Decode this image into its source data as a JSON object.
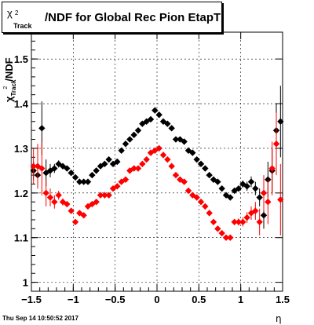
{
  "title": {
    "symbol": "χ",
    "sup": "2",
    "sub": "Track",
    "text": "/NDF for Global Rec Pion EtapT"
  },
  "ylabel": {
    "symbol": "χ",
    "sup": "2",
    "sub": "Track",
    "text": "/NDF"
  },
  "xlabel": "η",
  "footer": "Thu Sep 14 10:50:52 2017",
  "colors": {
    "black_series": "#000000",
    "red_series": "#ff0000",
    "grid": "#000000"
  },
  "chart_data": {
    "type": "scatter",
    "xlim": [
      -1.5,
      1.5
    ],
    "ylim": [
      0.98,
      1.56
    ],
    "grid": true,
    "xticks": [
      {
        "v": -1.5,
        "label": "−1.5"
      },
      {
        "v": -1.0,
        "label": "−1"
      },
      {
        "v": -0.5,
        "label": "−0.5"
      },
      {
        "v": 0.0,
        "label": "0"
      },
      {
        "v": 0.5,
        "label": "0.5"
      },
      {
        "v": 1.0,
        "label": "1"
      },
      {
        "v": 1.5,
        "label": "1.5"
      }
    ],
    "yticks": [
      {
        "v": 1.0,
        "label": "1"
      },
      {
        "v": 1.1,
        "label": "1.1"
      },
      {
        "v": 1.2,
        "label": "1.2"
      },
      {
        "v": 1.3,
        "label": "1.3"
      },
      {
        "v": 1.4,
        "label": "1.4"
      },
      {
        "v": 1.5,
        "label": "1.5"
      }
    ],
    "series": [
      {
        "color": "#000000",
        "points": [
          [
            -1.475,
            1.25,
            0.02
          ],
          [
            -1.425,
            1.24,
            0.03
          ],
          [
            -1.375,
            1.345,
            0.06
          ],
          [
            -1.325,
            1.245,
            0.03
          ],
          [
            -1.275,
            1.25,
            0.015
          ],
          [
            -1.225,
            1.255,
            0.01
          ],
          [
            -1.175,
            1.265,
            0.008
          ],
          [
            -1.125,
            1.26,
            0.006
          ],
          [
            -1.075,
            1.255,
            0.005
          ],
          [
            -1.025,
            1.245,
            0.005
          ],
          [
            -0.975,
            1.235,
            0.005
          ],
          [
            -0.925,
            1.225,
            0.005
          ],
          [
            -0.875,
            1.225,
            0.005
          ],
          [
            -0.825,
            1.225,
            0.005
          ],
          [
            -0.775,
            1.24,
            0.005
          ],
          [
            -0.725,
            1.25,
            0.005
          ],
          [
            -0.675,
            1.26,
            0.005
          ],
          [
            -0.625,
            1.265,
            0.005
          ],
          [
            -0.575,
            1.275,
            0.005
          ],
          [
            -0.525,
            1.265,
            0.005
          ],
          [
            -0.475,
            1.27,
            0.005
          ],
          [
            -0.425,
            1.295,
            0.005
          ],
          [
            -0.375,
            1.31,
            0.005
          ],
          [
            -0.325,
            1.32,
            0.005
          ],
          [
            -0.275,
            1.33,
            0.005
          ],
          [
            -0.225,
            1.34,
            0.005
          ],
          [
            -0.175,
            1.355,
            0.005
          ],
          [
            -0.125,
            1.36,
            0.005
          ],
          [
            -0.075,
            1.365,
            0.005
          ],
          [
            -0.025,
            1.385,
            0.006
          ],
          [
            0.025,
            1.375,
            0.006
          ],
          [
            0.075,
            1.36,
            0.005
          ],
          [
            0.125,
            1.355,
            0.005
          ],
          [
            0.175,
            1.345,
            0.005
          ],
          [
            0.225,
            1.32,
            0.005
          ],
          [
            0.275,
            1.32,
            0.005
          ],
          [
            0.325,
            1.315,
            0.005
          ],
          [
            0.375,
            1.295,
            0.005
          ],
          [
            0.425,
            1.29,
            0.005
          ],
          [
            0.475,
            1.275,
            0.005
          ],
          [
            0.525,
            1.265,
            0.005
          ],
          [
            0.575,
            1.255,
            0.005
          ],
          [
            0.625,
            1.24,
            0.005
          ],
          [
            0.675,
            1.23,
            0.005
          ],
          [
            0.725,
            1.225,
            0.005
          ],
          [
            0.775,
            1.21,
            0.005
          ],
          [
            0.825,
            1.195,
            0.005
          ],
          [
            0.875,
            1.19,
            0.005
          ],
          [
            0.925,
            1.205,
            0.006
          ],
          [
            0.975,
            1.21,
            0.006
          ],
          [
            1.025,
            1.22,
            0.008
          ],
          [
            1.075,
            1.215,
            0.01
          ],
          [
            1.125,
            1.225,
            0.012
          ],
          [
            1.175,
            1.21,
            0.015
          ],
          [
            1.225,
            1.19,
            0.02
          ],
          [
            1.275,
            1.15,
            0.03
          ],
          [
            1.325,
            1.23,
            0.04
          ],
          [
            1.375,
            1.25,
            0.05
          ],
          [
            1.425,
            1.34,
            0.06
          ],
          [
            1.475,
            1.36,
            0.08
          ]
        ]
      },
      {
        "color": "#ff0000",
        "points": [
          [
            -1.475,
            1.26,
            0.04
          ],
          [
            -1.425,
            1.26,
            0.05
          ],
          [
            -1.375,
            1.255,
            0.06
          ],
          [
            -1.325,
            1.2,
            0.03
          ],
          [
            -1.275,
            1.19,
            0.02
          ],
          [
            -1.225,
            1.18,
            0.015
          ],
          [
            -1.175,
            1.195,
            0.01
          ],
          [
            -1.125,
            1.18,
            0.008
          ],
          [
            -1.075,
            1.175,
            0.006
          ],
          [
            -1.025,
            1.16,
            0.006
          ],
          [
            -0.975,
            1.135,
            0.005
          ],
          [
            -0.925,
            1.155,
            0.005
          ],
          [
            -0.875,
            1.15,
            0.005
          ],
          [
            -0.825,
            1.17,
            0.005
          ],
          [
            -0.775,
            1.175,
            0.005
          ],
          [
            -0.725,
            1.18,
            0.005
          ],
          [
            -0.675,
            1.195,
            0.005
          ],
          [
            -0.625,
            1.195,
            0.005
          ],
          [
            -0.575,
            1.195,
            0.005
          ],
          [
            -0.525,
            1.21,
            0.005
          ],
          [
            -0.475,
            1.215,
            0.005
          ],
          [
            -0.425,
            1.225,
            0.005
          ],
          [
            -0.375,
            1.23,
            0.005
          ],
          [
            -0.325,
            1.25,
            0.005
          ],
          [
            -0.275,
            1.255,
            0.005
          ],
          [
            -0.225,
            1.255,
            0.005
          ],
          [
            -0.175,
            1.265,
            0.005
          ],
          [
            -0.125,
            1.275,
            0.005
          ],
          [
            -0.075,
            1.29,
            0.005
          ],
          [
            -0.025,
            1.295,
            0.006
          ],
          [
            0.025,
            1.3,
            0.006
          ],
          [
            0.075,
            1.285,
            0.005
          ],
          [
            0.125,
            1.275,
            0.005
          ],
          [
            0.175,
            1.26,
            0.005
          ],
          [
            0.225,
            1.24,
            0.005
          ],
          [
            0.275,
            1.23,
            0.005
          ],
          [
            0.325,
            1.225,
            0.005
          ],
          [
            0.375,
            1.205,
            0.005
          ],
          [
            0.425,
            1.195,
            0.005
          ],
          [
            0.475,
            1.19,
            0.005
          ],
          [
            0.525,
            1.18,
            0.005
          ],
          [
            0.575,
            1.17,
            0.005
          ],
          [
            0.625,
            1.155,
            0.005
          ],
          [
            0.675,
            1.135,
            0.005
          ],
          [
            0.725,
            1.12,
            0.005
          ],
          [
            0.775,
            1.11,
            0.005
          ],
          [
            0.825,
            1.1,
            0.005
          ],
          [
            0.875,
            1.1,
            0.006
          ],
          [
            0.925,
            1.135,
            0.006
          ],
          [
            0.975,
            1.135,
            0.008
          ],
          [
            1.025,
            1.135,
            0.01
          ],
          [
            1.075,
            1.145,
            0.012
          ],
          [
            1.125,
            1.155,
            0.015
          ],
          [
            1.175,
            1.16,
            0.02
          ],
          [
            1.225,
            1.135,
            0.03
          ],
          [
            1.275,
            1.2,
            0.04
          ],
          [
            1.325,
            1.18,
            0.05
          ],
          [
            1.375,
            1.255,
            0.06
          ],
          [
            1.425,
            1.31,
            0.07
          ],
          [
            1.475,
            1.185,
            0.08
          ]
        ]
      }
    ]
  }
}
